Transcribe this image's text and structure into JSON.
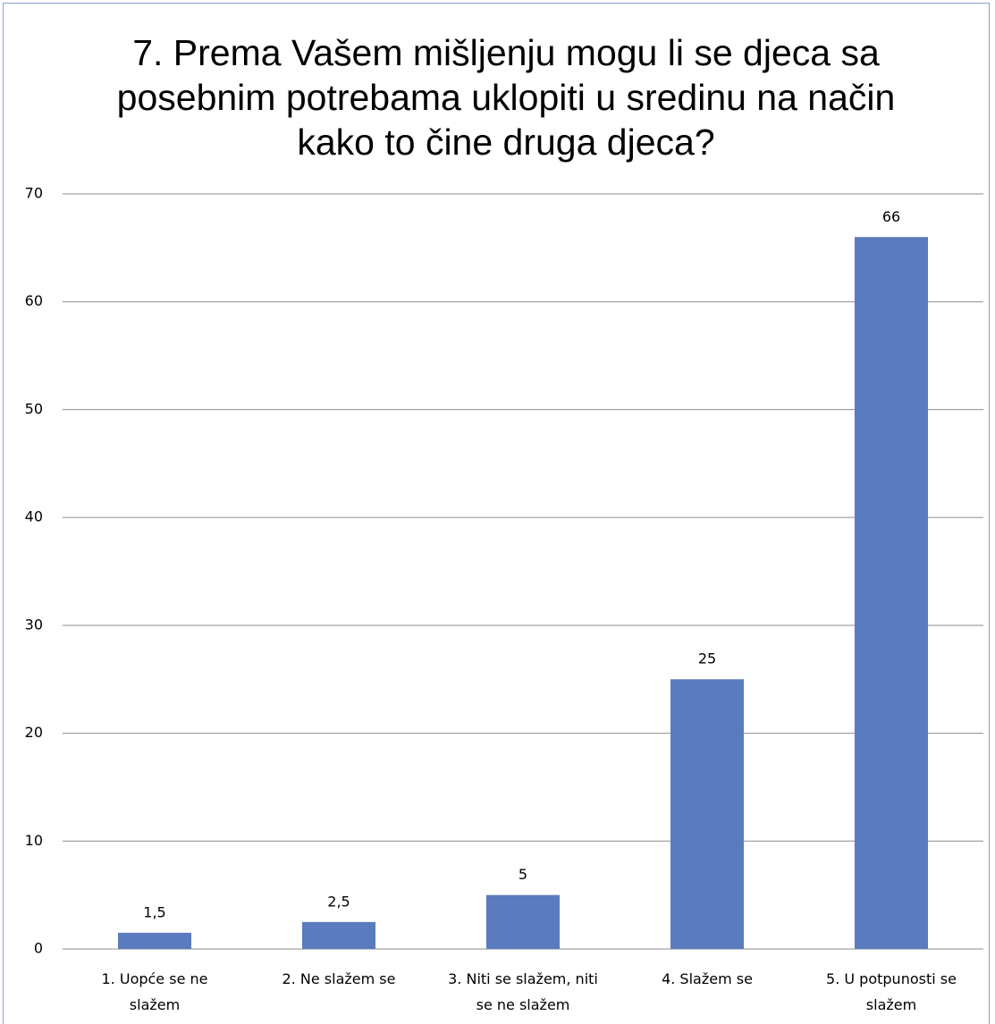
{
  "chart_data": {
    "type": "bar",
    "title": "7. Prema Vašem mišljenju mogu li se djeca sa posebnim potrebama uklopiti u sredinu na način kako to čine druga djeca?",
    "categories": [
      "1. Uopće se ne slažem",
      "2. Ne slažem se",
      "3. Niti se slažem, niti se ne slažem",
      "4. Slažem se",
      "5. U potpunosti se slažem"
    ],
    "values": [
      1.5,
      2.5,
      5,
      25,
      66
    ],
    "value_labels": [
      "1,5",
      "2,5",
      "5",
      "25",
      "66"
    ],
    "color": "#5a7bbd",
    "ylim": [
      0,
      70
    ],
    "yticks": [
      0,
      10,
      20,
      30,
      40,
      50,
      60,
      70
    ],
    "grid": true
  }
}
